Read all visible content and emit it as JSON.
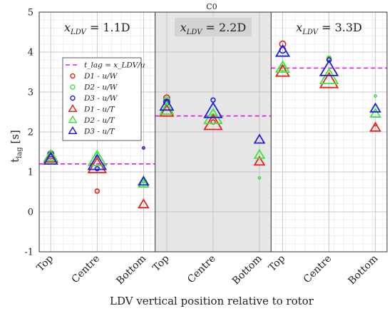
{
  "chart_data": {
    "type": "scatter",
    "title": "C0",
    "xlabel": "LDV vertical position relative to rotor",
    "ylabel": "t_lag [s]",
    "ylim": [
      -1,
      5
    ],
    "yticks": [
      -1,
      0,
      1,
      2,
      3,
      4,
      5
    ],
    "grid": true,
    "categories": [
      "Top",
      "Centre",
      "Bottom",
      "Top",
      "Centre",
      "Bottom",
      "Top",
      "Centre",
      "Bottom"
    ],
    "sections": [
      {
        "label": "x_LDV = 1.1D",
        "t_lag": 1.2,
        "shaded": false
      },
      {
        "label": "x_LDV = 2.2D",
        "t_lag": 2.4,
        "shaded": true
      },
      {
        "label": "x_LDV = 3.3D",
        "t_lag": 3.6,
        "shaded": false
      }
    ],
    "legend": {
      "position": "upper-left of first section",
      "entries": [
        "t_lag = x_LDV/u",
        "D1 - u/W",
        "D2 - u/W",
        "D3 - u/W",
        "D1 - u/T",
        "D2 - u/T",
        "D3 - u/T"
      ]
    },
    "series": [
      {
        "name": "D1 - u/W",
        "marker": "circle",
        "color": "#e8211c",
        "values": [
          1.4,
          0.52,
          null,
          2.85,
          2.25,
          null,
          4.2,
          3.82,
          2.18
        ]
      },
      {
        "name": "D2 - u/W",
        "marker": "circle",
        "color": "#3ce63c",
        "values": [
          1.35,
          1.42,
          0.75,
          2.8,
          2.4,
          0.85,
          3.6,
          3.85,
          2.9
        ]
      },
      {
        "name": "D3 - u/W",
        "marker": "circle",
        "color": "#1f1fd6",
        "values": [
          1.45,
          1.08,
          1.6,
          2.75,
          2.8,
          null,
          4.05,
          3.8,
          null
        ]
      },
      {
        "name": "D1 - u/T",
        "marker": "triangle",
        "color": "#e8211c",
        "values": [
          1.35,
          1.12,
          0.18,
          2.5,
          2.2,
          1.25,
          3.5,
          3.25,
          2.1
        ]
      },
      {
        "name": "D2 - u/T",
        "marker": "triangle",
        "color": "#3ce63c",
        "values": [
          1.38,
          1.3,
          0.7,
          2.55,
          2.35,
          1.42,
          3.6,
          3.35,
          2.45
        ]
      },
      {
        "name": "D3 - u/T",
        "marker": "triangle",
        "color": "#1f1fd6",
        "values": [
          1.3,
          1.2,
          0.75,
          2.65,
          2.5,
          1.8,
          4.0,
          3.55,
          2.58
        ]
      }
    ],
    "marker_scale": {
      "circle": [
        1,
        0.7,
        0.4,
        1,
        0.7,
        0.4,
        1,
        0.7,
        0.4
      ],
      "triangle": [
        1,
        1.35,
        0.75,
        1,
        1.35,
        0.75,
        1,
        1.35,
        0.75
      ]
    },
    "colors": {
      "lag_line": "#e619e6",
      "shade": "#e6e6e6",
      "grid_major": "#bdbdbd",
      "grid_minor": "#e9e9e9"
    }
  }
}
